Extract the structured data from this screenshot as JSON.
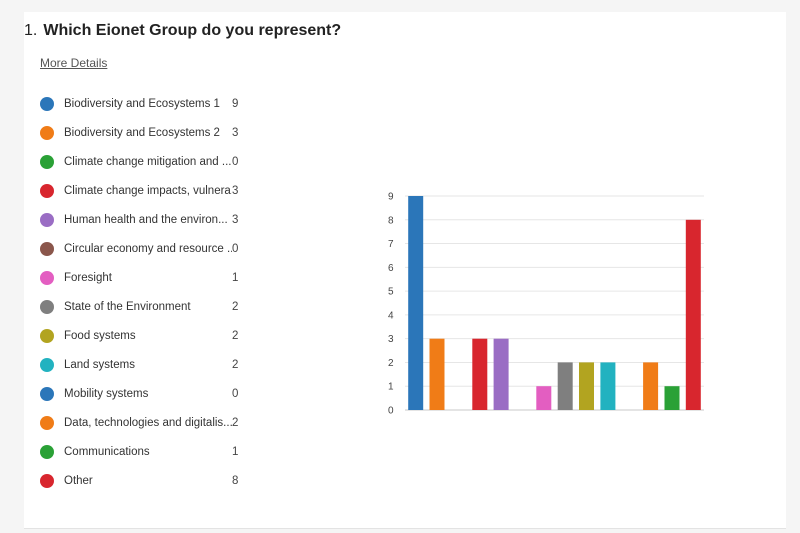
{
  "question": {
    "number": "1.",
    "text": "Which Eionet Group do you represent?"
  },
  "more_details_label": "More Details",
  "legend": [
    {
      "label": "Biodiversity and Ecosystems 1",
      "count": "9",
      "color": "#2b76b9"
    },
    {
      "label": "Biodiversity and Ecosystems 2",
      "count": "3",
      "color": "#f07c17"
    },
    {
      "label": "Climate change mitigation and ...",
      "count": "0",
      "color": "#2aa136"
    },
    {
      "label": "Climate change impacts, vulnera...",
      "count": "3",
      "color": "#d8262e"
    },
    {
      "label": "Human health and the environ...",
      "count": "3",
      "color": "#9a6dc4"
    },
    {
      "label": "Circular economy and resource ...",
      "count": "0",
      "color": "#8a564b"
    },
    {
      "label": "Foresight",
      "count": "1",
      "color": "#e35ec1"
    },
    {
      "label": "State of the Environment",
      "count": "2",
      "color": "#7f7f7f"
    },
    {
      "label": "Food systems",
      "count": "2",
      "color": "#b2a420"
    },
    {
      "label": "Land systems",
      "count": "2",
      "color": "#22b2c0"
    },
    {
      "label": "Mobility systems",
      "count": "0",
      "color": "#2b76b9"
    },
    {
      "label": "Data, technologies and digitalis...",
      "count": "2",
      "color": "#f07c17"
    },
    {
      "label": "Communications",
      "count": "1",
      "color": "#2aa136"
    },
    {
      "label": "Other",
      "count": "8",
      "color": "#d8262e"
    }
  ],
  "chart_data": {
    "type": "bar",
    "categories": [
      "Biodiversity and Ecosystems 1",
      "Biodiversity and Ecosystems 2",
      "Climate change mitigation and ...",
      "Climate change impacts, vulnera...",
      "Human health and the environ...",
      "Circular economy and resource ...",
      "Foresight",
      "State of the Environment",
      "Food systems",
      "Land systems",
      "Mobility systems",
      "Data, technologies and digitalis...",
      "Communications",
      "Other"
    ],
    "values": [
      9,
      3,
      0,
      3,
      3,
      0,
      1,
      2,
      2,
      2,
      0,
      2,
      1,
      8
    ],
    "colors": [
      "#2b76b9",
      "#f07c17",
      "#2aa136",
      "#d8262e",
      "#9a6dc4",
      "#8a564b",
      "#e35ec1",
      "#7f7f7f",
      "#b2a420",
      "#22b2c0",
      "#2b76b9",
      "#f07c17",
      "#2aa136",
      "#d8262e"
    ],
    "ylim": [
      0,
      9
    ],
    "yticks": [
      "0",
      "1",
      "2",
      "3",
      "4",
      "5",
      "6",
      "7",
      "8",
      "9"
    ],
    "grid": true,
    "title": "",
    "xlabel": "",
    "ylabel": ""
  }
}
